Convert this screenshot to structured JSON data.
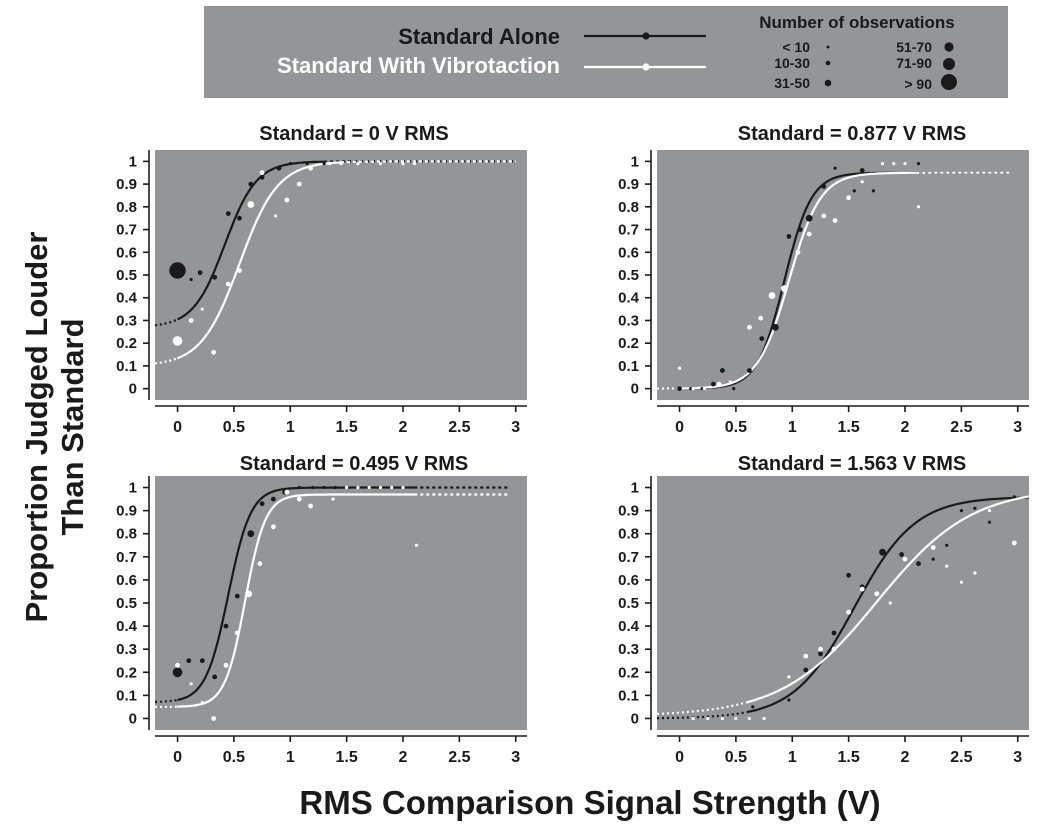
{
  "figure": {
    "ylabel_line1": "Proportion Judged Louder",
    "ylabel_line2": "Than Standard",
    "xlabel": "RMS Comparison Signal Strength (V)"
  },
  "legend": {
    "series": [
      {
        "label": "Standard Alone",
        "color": "#1a1a1a"
      },
      {
        "label": "Standard With Vibrotaction",
        "color": "#ffffff"
      }
    ],
    "size_title": "Number of observations",
    "sizes": [
      {
        "label": "< 10",
        "rank": 1
      },
      {
        "label": "10-30",
        "rank": 2
      },
      {
        "label": "31-50",
        "rank": 3
      },
      {
        "label": "51-70",
        "rank": 4
      },
      {
        "label": "71-90",
        "rank": 5
      },
      {
        "label": "> 90",
        "rank": 6
      }
    ]
  },
  "colors": {
    "panel_bg": "#939598",
    "legend_bg": "#939598",
    "standard_alone": "#1a1a1a",
    "with_vibrotaction": "#ffffff"
  },
  "chart_data": [
    {
      "type": "scatter",
      "title": "Standard = 0 V RMS",
      "xlim": [
        -0.2,
        3.1
      ],
      "ylim": [
        -0.05,
        1.05
      ],
      "xticks": [
        "0",
        "0.5",
        "1",
        "1.5",
        "2",
        "2.5",
        "3"
      ],
      "yticks": [
        "0",
        "0.1",
        "0.2",
        "0.3",
        "0.4",
        "0.5",
        "0.6",
        "0.7",
        "0.8",
        "0.9",
        "1"
      ],
      "series": [
        {
          "name": "Standard Alone",
          "fit": {
            "lower": 0.27,
            "upper": 1.0,
            "mu": 0.42,
            "s": 0.14,
            "solid_from": 0.0,
            "solid_to": 1.3,
            "x_max": 3.0
          },
          "points": [
            {
              "x": 0.0,
              "y": 0.52,
              "n": 6
            },
            {
              "x": 0.12,
              "y": 0.48,
              "n": 1
            },
            {
              "x": 0.2,
              "y": 0.51,
              "n": 2
            },
            {
              "x": 0.33,
              "y": 0.49,
              "n": 2
            },
            {
              "x": 0.45,
              "y": 0.77,
              "n": 2
            },
            {
              "x": 0.55,
              "y": 0.75,
              "n": 2
            },
            {
              "x": 0.65,
              "y": 0.9,
              "n": 2
            },
            {
              "x": 0.75,
              "y": 0.93,
              "n": 2
            },
            {
              "x": 0.9,
              "y": 0.97,
              "n": 2
            },
            {
              "x": 1.0,
              "y": 0.99,
              "n": 1
            },
            {
              "x": 1.15,
              "y": 0.99,
              "n": 1
            },
            {
              "x": 1.3,
              "y": 0.99,
              "n": 1
            }
          ]
        },
        {
          "name": "Standard With Vibrotaction",
          "fit": {
            "lower": 0.1,
            "upper": 1.0,
            "mu": 0.55,
            "s": 0.17,
            "solid_from": 0.0,
            "solid_to": 1.45,
            "x_max": 3.0
          },
          "points": [
            {
              "x": 0.0,
              "y": 0.21,
              "n": 4
            },
            {
              "x": 0.12,
              "y": 0.3,
              "n": 2
            },
            {
              "x": 0.22,
              "y": 0.35,
              "n": 1
            },
            {
              "x": 0.32,
              "y": 0.16,
              "n": 2
            },
            {
              "x": 0.45,
              "y": 0.46,
              "n": 2
            },
            {
              "x": 0.55,
              "y": 0.52,
              "n": 2
            },
            {
              "x": 0.65,
              "y": 0.81,
              "n": 3
            },
            {
              "x": 0.75,
              "y": 0.95,
              "n": 2
            },
            {
              "x": 0.87,
              "y": 0.76,
              "n": 1
            },
            {
              "x": 0.97,
              "y": 0.83,
              "n": 2
            },
            {
              "x": 1.08,
              "y": 0.9,
              "n": 2
            },
            {
              "x": 1.18,
              "y": 0.97,
              "n": 2
            },
            {
              "x": 1.35,
              "y": 0.99,
              "n": 1
            },
            {
              "x": 1.45,
              "y": 0.99,
              "n": 1
            },
            {
              "x": 1.6,
              "y": 0.99,
              "n": 1
            },
            {
              "x": 1.8,
              "y": 0.99,
              "n": 1
            },
            {
              "x": 2.0,
              "y": 0.99,
              "n": 1
            },
            {
              "x": 2.1,
              "y": 0.99,
              "n": 1
            }
          ]
        }
      ]
    },
    {
      "type": "scatter",
      "title": "Standard = 0.877 V RMS",
      "xlim": [
        -0.2,
        3.1
      ],
      "ylim": [
        -0.05,
        1.05
      ],
      "xticks": [
        "0",
        "0.5",
        "1",
        "1.5",
        "2",
        "2.5",
        "3"
      ],
      "yticks": [
        "0",
        "0.1",
        "0.2",
        "0.3",
        "0.4",
        "0.5",
        "0.6",
        "0.7",
        "0.8",
        "0.9",
        "1"
      ],
      "series": [
        {
          "name": "Standard Alone",
          "fit": {
            "lower": 0.0,
            "upper": 0.95,
            "mu": 0.93,
            "s": 0.12,
            "solid_from": 0.0,
            "solid_to": 2.1,
            "x_max": 2.95
          },
          "points": [
            {
              "x": 0.0,
              "y": 0.0,
              "n": 2
            },
            {
              "x": 0.1,
              "y": 0.0,
              "n": 1
            },
            {
              "x": 0.2,
              "y": 0.0,
              "n": 1
            },
            {
              "x": 0.3,
              "y": 0.02,
              "n": 2
            },
            {
              "x": 0.38,
              "y": 0.08,
              "n": 2
            },
            {
              "x": 0.48,
              "y": 0.0,
              "n": 1
            },
            {
              "x": 0.62,
              "y": 0.08,
              "n": 2
            },
            {
              "x": 0.73,
              "y": 0.22,
              "n": 2
            },
            {
              "x": 0.85,
              "y": 0.27,
              "n": 3
            },
            {
              "x": 0.97,
              "y": 0.67,
              "n": 2
            },
            {
              "x": 1.07,
              "y": 0.7,
              "n": 2
            },
            {
              "x": 1.15,
              "y": 0.75,
              "n": 3
            },
            {
              "x": 1.28,
              "y": 0.89,
              "n": 2
            },
            {
              "x": 1.38,
              "y": 0.97,
              "n": 1
            },
            {
              "x": 1.55,
              "y": 0.87,
              "n": 1
            },
            {
              "x": 1.62,
              "y": 0.96,
              "n": 2
            },
            {
              "x": 1.72,
              "y": 0.87,
              "n": 1
            },
            {
              "x": 2.12,
              "y": 0.99,
              "n": 1
            }
          ]
        },
        {
          "name": "Standard With Vibrotaction",
          "fit": {
            "lower": 0.0,
            "upper": 0.95,
            "mu": 0.97,
            "s": 0.14,
            "solid_from": 0.0,
            "solid_to": 2.1,
            "x_max": 2.95
          },
          "points": [
            {
              "x": 0.0,
              "y": 0.09,
              "n": 1
            },
            {
              "x": 0.12,
              "y": 0.0,
              "n": 1
            },
            {
              "x": 0.22,
              "y": 0.0,
              "n": 1
            },
            {
              "x": 0.35,
              "y": 0.02,
              "n": 2
            },
            {
              "x": 0.45,
              "y": 0.03,
              "n": 1
            },
            {
              "x": 0.62,
              "y": 0.27,
              "n": 2
            },
            {
              "x": 0.72,
              "y": 0.31,
              "n": 2
            },
            {
              "x": 0.82,
              "y": 0.41,
              "n": 3
            },
            {
              "x": 0.93,
              "y": 0.44,
              "n": 3
            },
            {
              "x": 1.05,
              "y": 0.6,
              "n": 2
            },
            {
              "x": 1.15,
              "y": 0.68,
              "n": 2
            },
            {
              "x": 1.28,
              "y": 0.76,
              "n": 2
            },
            {
              "x": 1.38,
              "y": 0.74,
              "n": 2
            },
            {
              "x": 1.5,
              "y": 0.84,
              "n": 2
            },
            {
              "x": 1.62,
              "y": 0.91,
              "n": 1
            },
            {
              "x": 1.8,
              "y": 0.99,
              "n": 1
            },
            {
              "x": 1.9,
              "y": 0.99,
              "n": 1
            },
            {
              "x": 2.0,
              "y": 0.99,
              "n": 1
            },
            {
              "x": 2.12,
              "y": 0.8,
              "n": 1
            }
          ]
        }
      ]
    },
    {
      "type": "scatter",
      "title": "Standard = 0.495 V RMS",
      "xlim": [
        -0.2,
        3.1
      ],
      "ylim": [
        -0.05,
        1.05
      ],
      "xticks": [
        "0",
        "0.5",
        "1",
        "1.5",
        "2",
        "2.5",
        "3"
      ],
      "yticks": [
        "0",
        "0.1",
        "0.2",
        "0.3",
        "0.4",
        "0.5",
        "0.6",
        "0.7",
        "0.8",
        "0.9",
        "1"
      ],
      "series": [
        {
          "name": "Standard Alone",
          "fit": {
            "lower": 0.07,
            "upper": 1.0,
            "mu": 0.45,
            "s": 0.1,
            "solid_from": 0.0,
            "solid_to": 2.1,
            "x_max": 2.95
          },
          "points": [
            {
              "x": 0.0,
              "y": 0.2,
              "n": 4
            },
            {
              "x": 0.1,
              "y": 0.25,
              "n": 2
            },
            {
              "x": 0.22,
              "y": 0.25,
              "n": 2
            },
            {
              "x": 0.33,
              "y": 0.18,
              "n": 2
            },
            {
              "x": 0.43,
              "y": 0.4,
              "n": 2
            },
            {
              "x": 0.53,
              "y": 0.53,
              "n": 2
            },
            {
              "x": 0.65,
              "y": 0.8,
              "n": 3
            },
            {
              "x": 0.75,
              "y": 0.93,
              "n": 2
            },
            {
              "x": 0.85,
              "y": 0.95,
              "n": 2
            },
            {
              "x": 0.95,
              "y": 0.98,
              "n": 2
            },
            {
              "x": 1.08,
              "y": 1.0,
              "n": 1
            },
            {
              "x": 1.2,
              "y": 1.0,
              "n": 1
            },
            {
              "x": 1.3,
              "y": 1.0,
              "n": 1
            },
            {
              "x": 1.4,
              "y": 1.0,
              "n": 1
            }
          ]
        },
        {
          "name": "Standard With Vibrotaction",
          "fit": {
            "lower": 0.05,
            "upper": 0.97,
            "mu": 0.6,
            "s": 0.09,
            "solid_from": 0.0,
            "solid_to": 2.1,
            "x_max": 2.95
          },
          "points": [
            {
              "x": 0.0,
              "y": 0.23,
              "n": 2
            },
            {
              "x": 0.12,
              "y": 0.15,
              "n": 1
            },
            {
              "x": 0.22,
              "y": 0.07,
              "n": 1
            },
            {
              "x": 0.32,
              "y": 0.0,
              "n": 2
            },
            {
              "x": 0.43,
              "y": 0.23,
              "n": 2
            },
            {
              "x": 0.53,
              "y": 0.37,
              "n": 2
            },
            {
              "x": 0.63,
              "y": 0.54,
              "n": 3
            },
            {
              "x": 0.73,
              "y": 0.67,
              "n": 2
            },
            {
              "x": 0.85,
              "y": 0.83,
              "n": 2
            },
            {
              "x": 0.97,
              "y": 0.98,
              "n": 2
            },
            {
              "x": 1.08,
              "y": 0.95,
              "n": 2
            },
            {
              "x": 1.18,
              "y": 0.92,
              "n": 2
            },
            {
              "x": 1.38,
              "y": 0.95,
              "n": 1
            },
            {
              "x": 1.5,
              "y": 1.0,
              "n": 1
            },
            {
              "x": 1.6,
              "y": 1.0,
              "n": 1
            },
            {
              "x": 1.7,
              "y": 1.0,
              "n": 1
            },
            {
              "x": 1.8,
              "y": 1.0,
              "n": 1
            },
            {
              "x": 1.9,
              "y": 1.0,
              "n": 1
            },
            {
              "x": 2.0,
              "y": 1.0,
              "n": 1
            },
            {
              "x": 2.12,
              "y": 0.75,
              "n": 1
            }
          ]
        }
      ]
    },
    {
      "type": "scatter",
      "title": "Standard = 1.563 V RMS",
      "xlim": [
        -0.2,
        3.1
      ],
      "ylim": [
        -0.05,
        1.05
      ],
      "xticks": [
        "0",
        "0.5",
        "1",
        "1.5",
        "2",
        "2.5",
        "3"
      ],
      "yticks": [
        "0",
        "0.1",
        "0.2",
        "0.3",
        "0.4",
        "0.5",
        "0.6",
        "0.7",
        "0.8",
        "0.9",
        "1"
      ],
      "series": [
        {
          "name": "Standard Alone",
          "fit": {
            "lower": 0.0,
            "upper": 0.96,
            "mu": 1.55,
            "s": 0.27,
            "solid_from": 0.6,
            "solid_to": 3.1,
            "x_max": 3.1
          },
          "points": [
            {
              "x": 0.65,
              "y": 0.05,
              "n": 1
            },
            {
              "x": 0.97,
              "y": 0.08,
              "n": 1
            },
            {
              "x": 1.12,
              "y": 0.21,
              "n": 2
            },
            {
              "x": 1.25,
              "y": 0.28,
              "n": 2
            },
            {
              "x": 1.37,
              "y": 0.37,
              "n": 2
            },
            {
              "x": 1.5,
              "y": 0.62,
              "n": 2
            },
            {
              "x": 1.62,
              "y": 0.57,
              "n": 2
            },
            {
              "x": 1.8,
              "y": 0.72,
              "n": 3
            },
            {
              "x": 1.97,
              "y": 0.71,
              "n": 2
            },
            {
              "x": 2.12,
              "y": 0.67,
              "n": 2
            },
            {
              "x": 2.25,
              "y": 0.69,
              "n": 1
            },
            {
              "x": 2.37,
              "y": 0.75,
              "n": 1
            },
            {
              "x": 2.5,
              "y": 0.9,
              "n": 1
            },
            {
              "x": 2.62,
              "y": 0.91,
              "n": 1
            },
            {
              "x": 2.75,
              "y": 0.85,
              "n": 1
            },
            {
              "x": 2.97,
              "y": 0.96,
              "n": 1
            }
          ]
        },
        {
          "name": "Standard With Vibrotaction",
          "fit": {
            "lower": 0.01,
            "upper": 1.0,
            "mu": 1.75,
            "s": 0.42,
            "solid_from": 0.6,
            "solid_to": 3.1,
            "x_max": 3.1
          },
          "points": [
            {
              "x": 0.12,
              "y": 0.0,
              "n": 1
            },
            {
              "x": 0.25,
              "y": 0.0,
              "n": 1
            },
            {
              "x": 0.38,
              "y": 0.0,
              "n": 1
            },
            {
              "x": 0.5,
              "y": 0.0,
              "n": 1
            },
            {
              "x": 0.62,
              "y": 0.0,
              "n": 1
            },
            {
              "x": 0.75,
              "y": 0.0,
              "n": 1
            },
            {
              "x": 0.97,
              "y": 0.18,
              "n": 1
            },
            {
              "x": 1.12,
              "y": 0.27,
              "n": 2
            },
            {
              "x": 1.25,
              "y": 0.3,
              "n": 2
            },
            {
              "x": 1.37,
              "y": 0.3,
              "n": 2
            },
            {
              "x": 1.5,
              "y": 0.46,
              "n": 2
            },
            {
              "x": 1.62,
              "y": 0.56,
              "n": 2
            },
            {
              "x": 1.75,
              "y": 0.54,
              "n": 2
            },
            {
              "x": 1.87,
              "y": 0.5,
              "n": 1
            },
            {
              "x": 2.0,
              "y": 0.69,
              "n": 2
            },
            {
              "x": 2.25,
              "y": 0.74,
              "n": 2
            },
            {
              "x": 2.37,
              "y": 0.66,
              "n": 1
            },
            {
              "x": 2.5,
              "y": 0.59,
              "n": 1
            },
            {
              "x": 2.62,
              "y": 0.63,
              "n": 1
            },
            {
              "x": 2.75,
              "y": 0.9,
              "n": 1
            },
            {
              "x": 2.97,
              "y": 0.76,
              "n": 2
            }
          ]
        }
      ]
    }
  ]
}
